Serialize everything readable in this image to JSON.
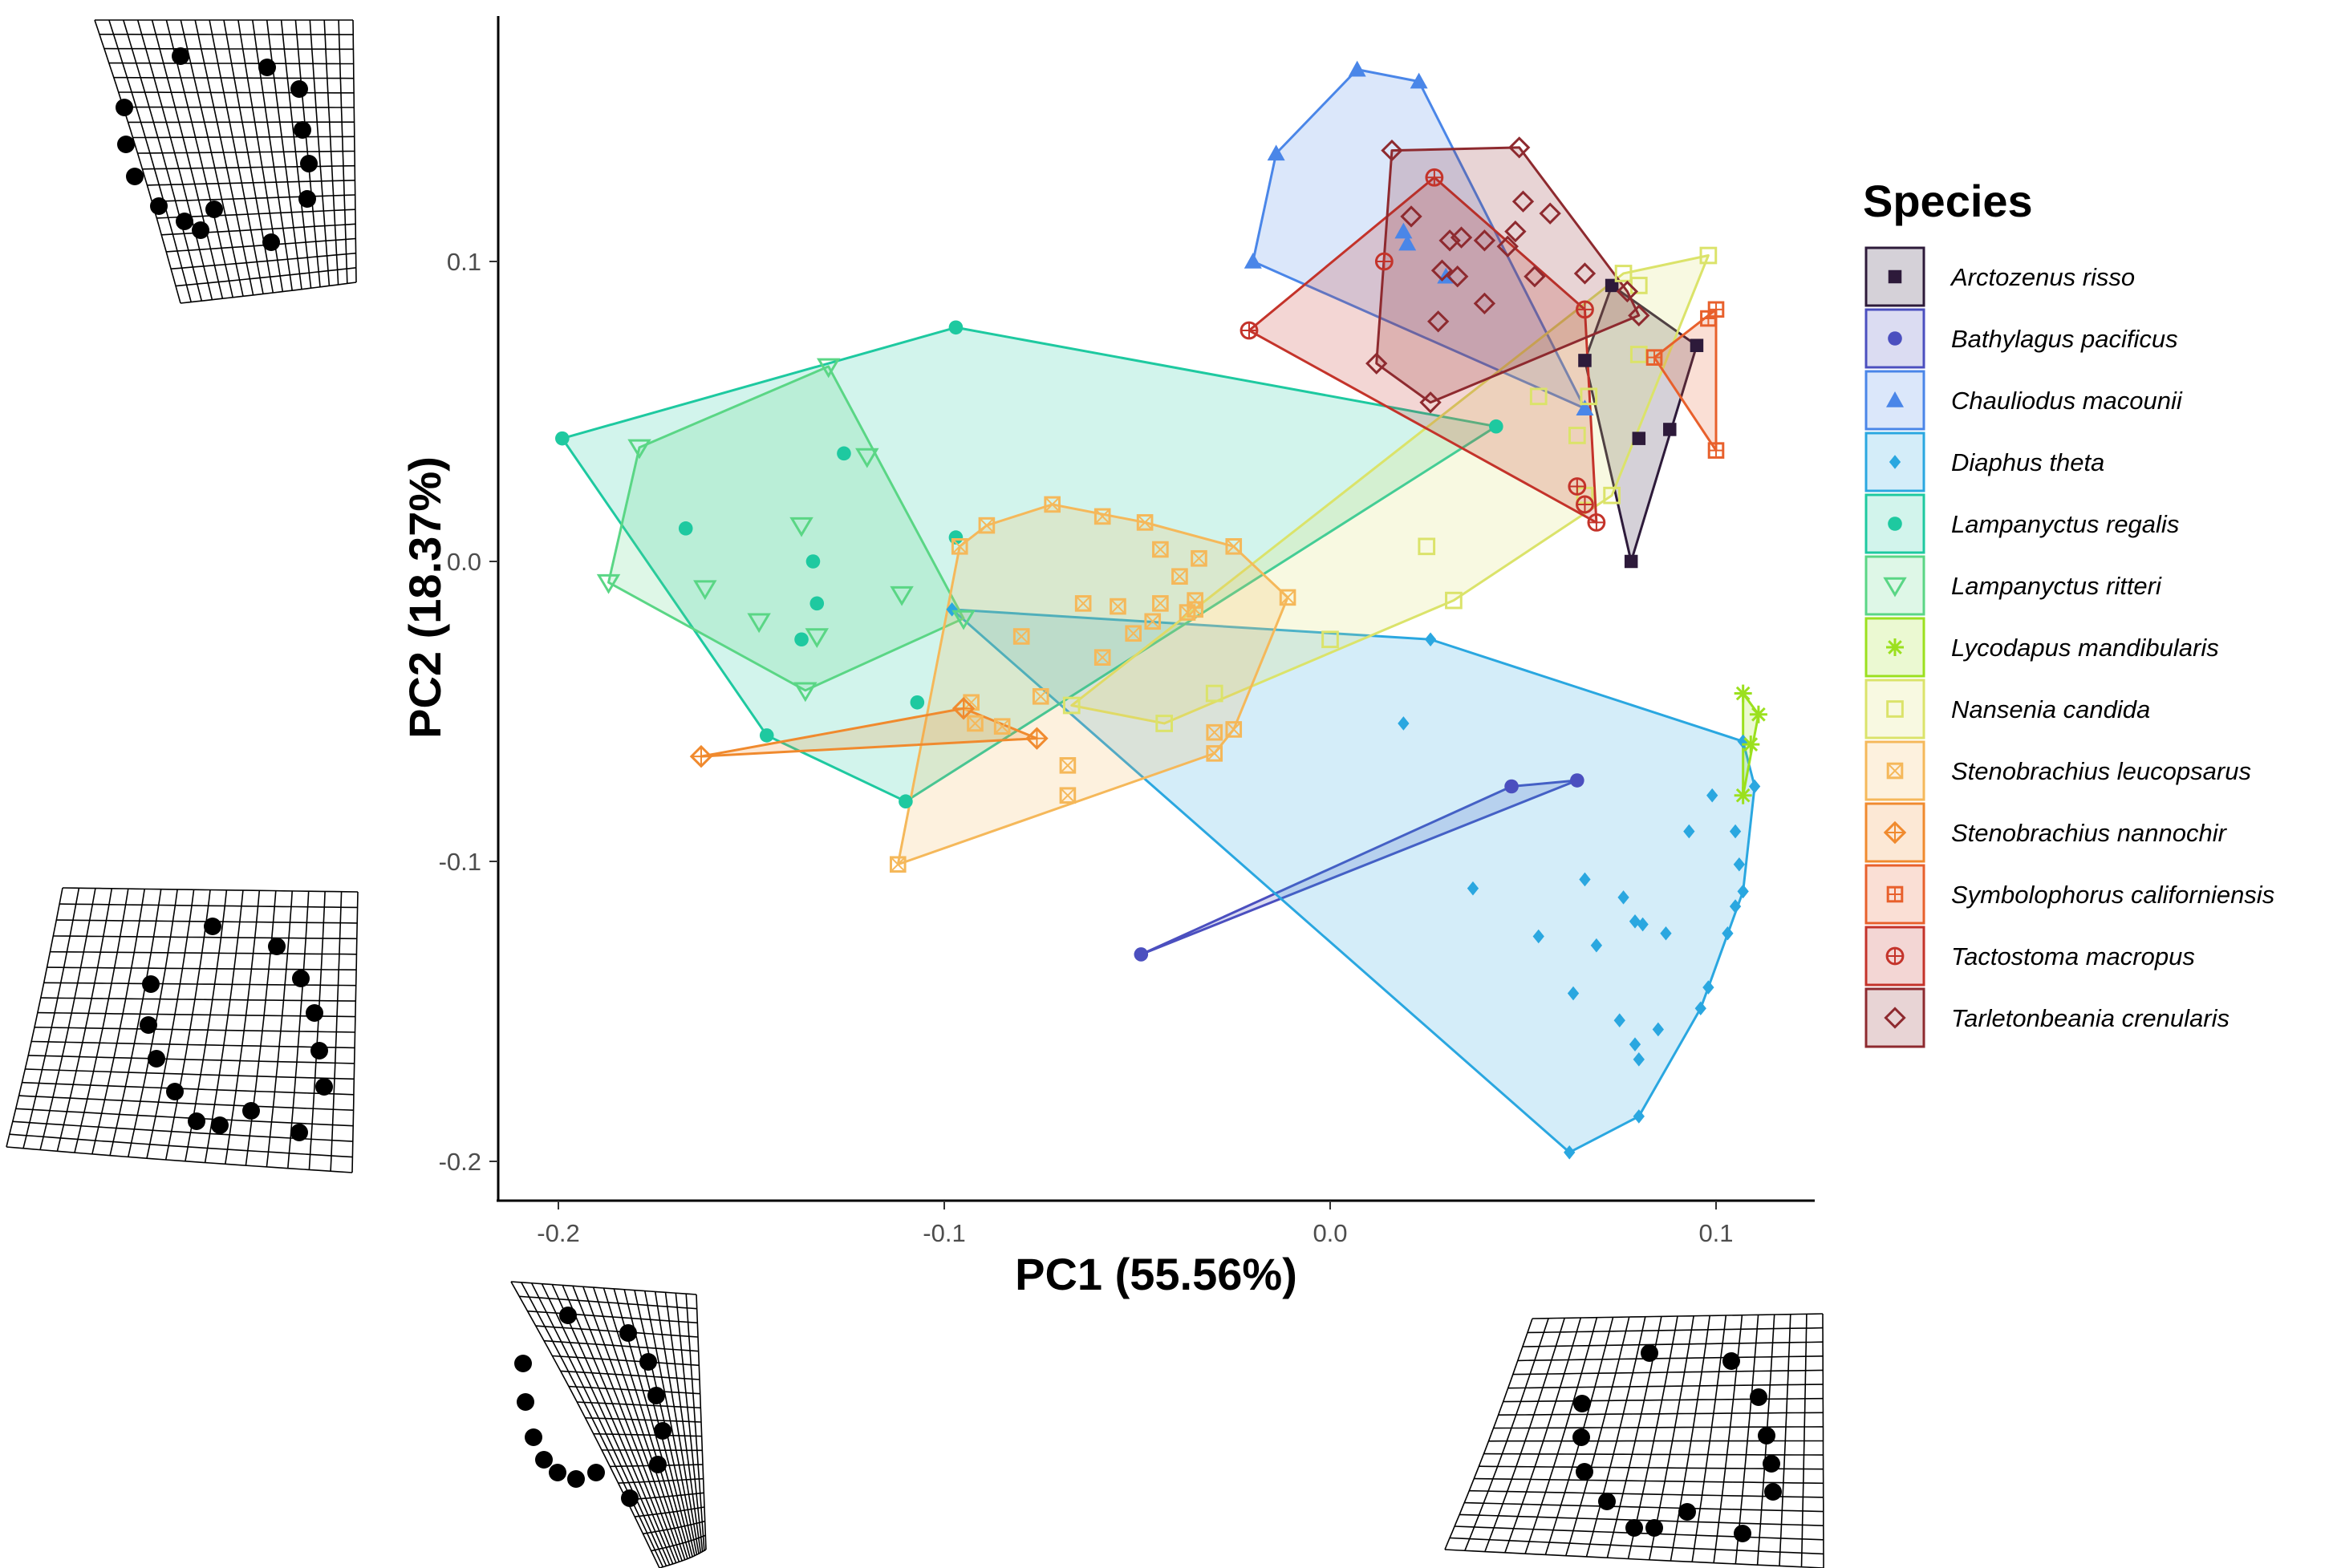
{
  "chart_data": {
    "type": "scatter",
    "xlabel": "PC1 (55.56%)",
    "ylabel": "PC2 (18.37%)",
    "xlim": [
      -0.213,
      0.127
    ],
    "ylim": [
      -0.214,
      0.182
    ],
    "x_ticks": [
      -0.2,
      -0.1,
      0.0,
      0.1
    ],
    "x_tick_labels": [
      "-0.2",
      "-0.1",
      "0.0",
      "0.1"
    ],
    "y_ticks": [
      0.1,
      0.0,
      -0.1,
      -0.2
    ],
    "y_tick_labels": [
      "0.1",
      "0.0",
      "-0.1",
      "-0.2"
    ],
    "grid": false,
    "hulls": "convex hull per species",
    "legend": {
      "title": "Species",
      "placement": "right"
    },
    "deformation_grids": [
      "top-left",
      "bottom-left",
      "bottom-center",
      "bottom-right"
    ],
    "series": [
      {
        "name": "Arctozenus risso",
        "color": "#2d1a3a",
        "shape": "square-filled",
        "points": [
          [
            0.073,
            0.092
          ],
          [
            0.066,
            0.067
          ],
          [
            0.078,
            0.0
          ],
          [
            0.08,
            0.041
          ],
          [
            0.088,
            0.044
          ],
          [
            0.095,
            0.072
          ]
        ]
      },
      {
        "name": "Bathylagus pacificus",
        "color": "#4b4fbf",
        "shape": "circle-filled",
        "points": [
          [
            -0.049,
            -0.131
          ],
          [
            0.047,
            -0.075
          ],
          [
            0.064,
            -0.073
          ]
        ]
      },
      {
        "name": "Chauliodus macounii",
        "color": "#4a86e8",
        "shape": "triangle-filled",
        "points": [
          [
            -0.02,
            0.1
          ],
          [
            -0.014,
            0.136
          ],
          [
            0.007,
            0.164
          ],
          [
            0.023,
            0.16
          ],
          [
            0.02,
            0.106
          ],
          [
            0.03,
            0.095
          ],
          [
            0.066,
            0.051
          ],
          [
            0.019,
            0.11
          ]
        ]
      },
      {
        "name": "Diaphus theta",
        "color": "#2aa7e0",
        "shape": "diamond-filled",
        "points": [
          [
            -0.098,
            -0.016
          ],
          [
            0.026,
            -0.026
          ],
          [
            0.019,
            -0.054
          ],
          [
            0.037,
            -0.109
          ],
          [
            0.054,
            -0.125
          ],
          [
            0.062,
            -0.197
          ],
          [
            0.063,
            -0.144
          ],
          [
            0.066,
            -0.106
          ],
          [
            0.069,
            -0.128
          ],
          [
            0.075,
            -0.153
          ],
          [
            0.076,
            -0.112
          ],
          [
            0.079,
            -0.12
          ],
          [
            0.079,
            -0.161
          ],
          [
            0.08,
            -0.166
          ],
          [
            0.08,
            -0.185
          ],
          [
            0.081,
            -0.121
          ],
          [
            0.085,
            -0.156
          ],
          [
            0.087,
            -0.124
          ],
          [
            0.093,
            -0.09
          ],
          [
            0.096,
            -0.149
          ],
          [
            0.098,
            -0.142
          ],
          [
            0.099,
            -0.078
          ],
          [
            0.103,
            -0.124
          ],
          [
            0.105,
            -0.115
          ],
          [
            0.106,
            -0.101
          ],
          [
            0.107,
            -0.11
          ],
          [
            0.105,
            -0.09
          ],
          [
            0.107,
            -0.06
          ],
          [
            0.11,
            -0.075
          ]
        ]
      },
      {
        "name": "Lampanyctus regalis",
        "color": "#1ec9a0",
        "shape": "circle-filled",
        "points": [
          [
            -0.199,
            0.041
          ],
          [
            -0.097,
            0.078
          ],
          [
            0.043,
            0.045
          ],
          [
            -0.167,
            0.011
          ],
          [
            -0.126,
            0.036
          ],
          [
            -0.134,
            0.0
          ],
          [
            -0.133,
            -0.014
          ],
          [
            -0.137,
            -0.026
          ],
          [
            -0.146,
            -0.058
          ],
          [
            -0.097,
            0.008
          ],
          [
            -0.107,
            -0.047
          ],
          [
            -0.11,
            -0.08
          ]
        ]
      },
      {
        "name": "Lampanyctus ritteri",
        "color": "#5ad685",
        "shape": "triangle-down-open",
        "points": [
          [
            -0.187,
            -0.007
          ],
          [
            -0.179,
            0.038
          ],
          [
            -0.13,
            0.065
          ],
          [
            -0.12,
            0.035
          ],
          [
            -0.137,
            0.012
          ],
          [
            -0.162,
            -0.009
          ],
          [
            -0.148,
            -0.02
          ],
          [
            -0.133,
            -0.025
          ],
          [
            -0.136,
            -0.043
          ],
          [
            -0.111,
            -0.011
          ],
          [
            -0.095,
            -0.019
          ]
        ]
      },
      {
        "name": "Lycodapus mandibularis",
        "color": "#9be01e",
        "shape": "asterisk",
        "points": [
          [
            0.107,
            -0.044
          ],
          [
            0.111,
            -0.051
          ],
          [
            0.109,
            -0.061
          ],
          [
            0.107,
            -0.078
          ]
        ]
      },
      {
        "name": "Nansenia candida",
        "color": "#dbe36a",
        "shape": "square-open",
        "points": [
          [
            0.098,
            0.102
          ],
          [
            0.076,
            0.096
          ],
          [
            0.08,
            0.092
          ],
          [
            0.08,
            0.069
          ],
          [
            0.067,
            0.055
          ],
          [
            0.064,
            0.042
          ],
          [
            0.066,
            0.022
          ],
          [
            0.073,
            0.022
          ],
          [
            0.054,
            0.055
          ],
          [
            0.025,
            0.005
          ],
          [
            0.032,
            -0.013
          ],
          [
            0.0,
            -0.026
          ],
          [
            -0.043,
            -0.054
          ],
          [
            -0.067,
            -0.048
          ],
          [
            -0.03,
            -0.044
          ]
        ]
      },
      {
        "name": "Stenobrachius leucopsarus",
        "color": "#f5b85a",
        "shape": "square-x",
        "points": [
          [
            -0.112,
            -0.101
          ],
          [
            -0.096,
            0.005
          ],
          [
            -0.089,
            0.012
          ],
          [
            -0.072,
            0.019
          ],
          [
            -0.059,
            0.015
          ],
          [
            -0.048,
            0.013
          ],
          [
            -0.044,
            0.004
          ],
          [
            -0.039,
            -0.005
          ],
          [
            -0.035,
            -0.013
          ],
          [
            -0.025,
            0.005
          ],
          [
            -0.011,
            -0.012
          ],
          [
            -0.025,
            -0.056
          ],
          [
            -0.03,
            -0.064
          ],
          [
            -0.03,
            -0.057
          ],
          [
            -0.068,
            -0.068
          ],
          [
            -0.068,
            -0.078
          ],
          [
            -0.075,
            -0.045
          ],
          [
            -0.085,
            -0.055
          ],
          [
            -0.092,
            -0.054
          ],
          [
            -0.093,
            -0.047
          ],
          [
            -0.08,
            -0.025
          ],
          [
            -0.064,
            -0.014
          ],
          [
            -0.055,
            -0.015
          ],
          [
            -0.051,
            -0.024
          ],
          [
            -0.046,
            -0.02
          ],
          [
            -0.044,
            -0.014
          ],
          [
            -0.037,
            -0.017
          ],
          [
            -0.035,
            -0.016
          ],
          [
            -0.034,
            0.001
          ],
          [
            -0.059,
            -0.032
          ]
        ]
      },
      {
        "name": "Stenobrachius nannochir",
        "color": "#f08a2e",
        "shape": "diamond-plus",
        "points": [
          [
            -0.163,
            -0.065
          ],
          [
            -0.095,
            -0.049
          ],
          [
            -0.076,
            -0.059
          ]
        ]
      },
      {
        "name": "Symbolophorus californiensis",
        "color": "#e8602c",
        "shape": "square-plus",
        "points": [
          [
            0.084,
            0.068
          ],
          [
            0.098,
            0.081
          ],
          [
            0.1,
            0.084
          ],
          [
            0.1,
            0.037
          ]
        ]
      },
      {
        "name": "Tactostoma macropus",
        "color": "#c4332a",
        "shape": "circle-plus",
        "points": [
          [
            -0.021,
            0.077
          ],
          [
            0.014,
            0.1
          ],
          [
            0.027,
            0.128
          ],
          [
            0.066,
            0.084
          ],
          [
            0.064,
            0.025
          ],
          [
            0.066,
            0.019
          ],
          [
            0.069,
            0.013
          ]
        ]
      },
      {
        "name": "Tarletonbeania crenularis",
        "color": "#8e2a2f",
        "shape": "diamond-open",
        "points": [
          [
            0.016,
            0.137
          ],
          [
            0.049,
            0.138
          ],
          [
            0.05,
            0.12
          ],
          [
            0.057,
            0.116
          ],
          [
            0.048,
            0.11
          ],
          [
            0.046,
            0.105
          ],
          [
            0.04,
            0.107
          ],
          [
            0.034,
            0.108
          ],
          [
            0.031,
            0.107
          ],
          [
            0.021,
            0.115
          ],
          [
            0.029,
            0.097
          ],
          [
            0.033,
            0.095
          ],
          [
            0.04,
            0.086
          ],
          [
            0.028,
            0.08
          ],
          [
            0.012,
            0.066
          ],
          [
            0.026,
            0.053
          ],
          [
            0.053,
            0.095
          ],
          [
            0.066,
            0.096
          ],
          [
            0.077,
            0.09
          ],
          [
            0.08,
            0.082
          ]
        ]
      }
    ]
  }
}
